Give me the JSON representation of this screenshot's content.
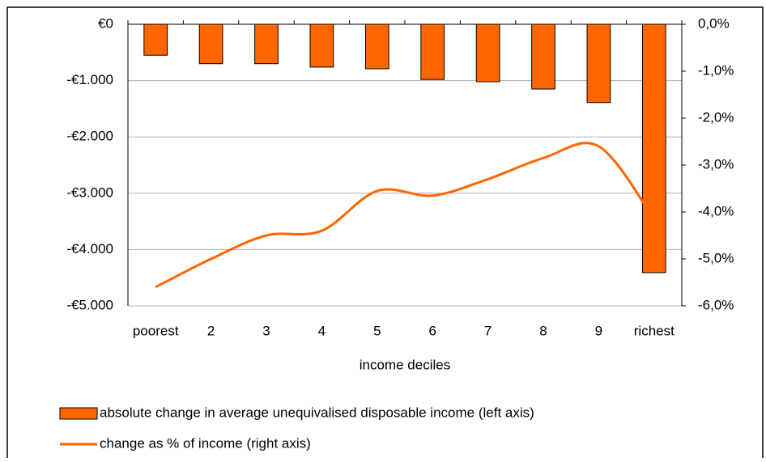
{
  "chart_data": {
    "type": "bar-line",
    "x_label": "income deciles",
    "categories": [
      "poorest",
      "2",
      "3",
      "4",
      "5",
      "6",
      "7",
      "8",
      "9",
      "richest"
    ],
    "series": [
      {
        "name": "absolute change in average unequivalised disposable income (left axis)",
        "type": "bar",
        "color": "#ff6600",
        "values": [
          -550,
          -700,
          -700,
          -760,
          -790,
          -980,
          -1020,
          -1150,
          -1390,
          -4410
        ]
      },
      {
        "name": "change as % of income (right axis)",
        "type": "line",
        "axis": "y2",
        "color": "#ff6600",
        "values": [
          -5.6,
          -5.0,
          -4.5,
          -4.4,
          -3.55,
          -3.65,
          -3.3,
          -2.85,
          -2.6,
          -4.15
        ]
      }
    ],
    "ylim": [
      -5000,
      0
    ],
    "yticks": [
      {
        "value": 0,
        "label": "€0"
      },
      {
        "value": -1000,
        "label": "-€1.000"
      },
      {
        "value": -2000,
        "label": "-€2.000"
      },
      {
        "value": -3000,
        "label": "-€3.000"
      },
      {
        "value": -4000,
        "label": "-€4.000"
      },
      {
        "value": -5000,
        "label": "-€5.000"
      }
    ],
    "y2lim": [
      -6,
      0
    ],
    "y2ticks": [
      {
        "value": 0,
        "label": "0,0%"
      },
      {
        "value": -1,
        "label": "-1,0%"
      },
      {
        "value": -2,
        "label": "-2,0%"
      },
      {
        "value": -3,
        "label": "-3,0%"
      },
      {
        "value": -4,
        "label": "-4,0%"
      },
      {
        "value": -5,
        "label": "-5,0%"
      },
      {
        "value": -6,
        "label": "-6,0%"
      }
    ],
    "grid": true
  }
}
